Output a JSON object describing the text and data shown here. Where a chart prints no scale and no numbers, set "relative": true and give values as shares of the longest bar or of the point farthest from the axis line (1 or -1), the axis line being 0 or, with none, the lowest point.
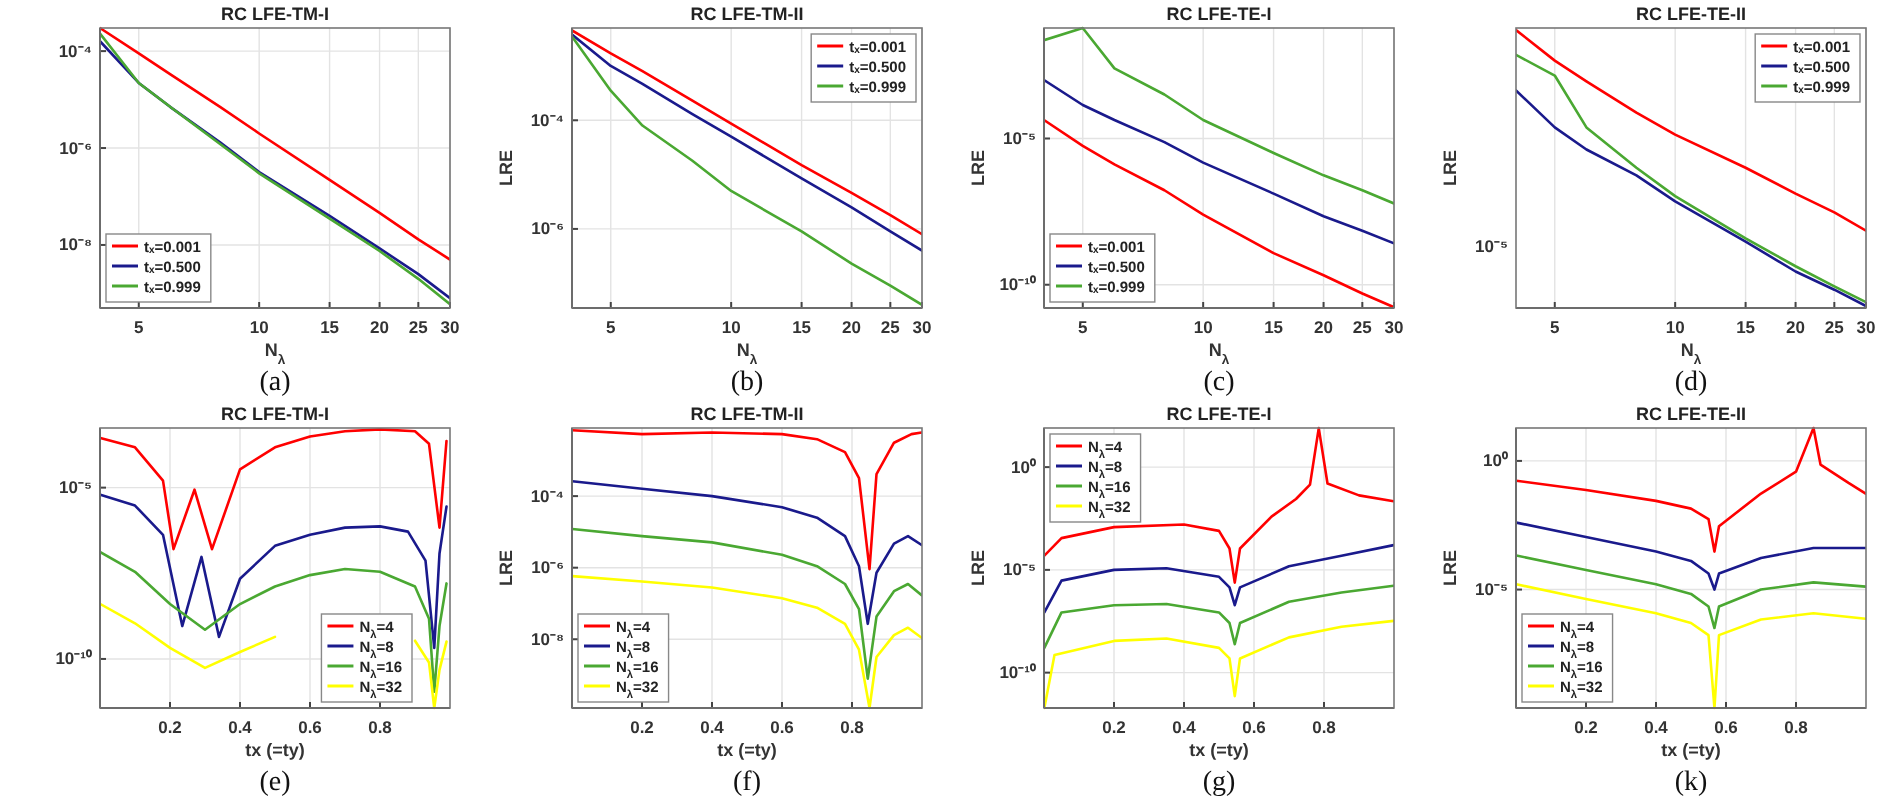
{
  "chart_data": [
    {
      "type": "line",
      "title": "RC LFE-TM-I",
      "xlabel": "N$_{λ}$",
      "annotations": [
        "(a)"
      ],
      "log": "xy",
      "grid": true,
      "legend": "bottom left",
      "xlim": [
        4,
        30
      ],
      "xticks": [
        5,
        10,
        15,
        20,
        25,
        30
      ],
      "ylim": [
        5e-10,
        0.0003
      ],
      "yticks": [
        {
          "value": 1e-08,
          "label": "10⁻⁸"
        },
        {
          "value": 1e-06,
          "label": "10⁻⁶"
        },
        {
          "value": 0.0001,
          "label": "10⁻⁴"
        }
      ],
      "series": [
        {
          "name": "tₓ=0.001",
          "color": "#ff0000",
          "x": [
            4,
            5,
            6,
            8,
            10,
            15,
            20,
            25,
            30
          ],
          "values": [
            0.0003,
            9e-05,
            3.3e-05,
            7e-06,
            2e-06,
            2.2e-07,
            4.6e-08,
            1.3e-08,
            5e-09
          ]
        },
        {
          "name": "tₓ=0.500",
          "color": "#1a1a8c",
          "x": [
            4,
            5,
            6,
            8,
            10,
            15,
            20,
            25,
            30
          ],
          "values": [
            0.00016,
            2.2e-05,
            7e-06,
            1.3e-06,
            3.2e-07,
            4e-08,
            8.5e-09,
            2.5e-09,
            8e-10
          ]
        },
        {
          "name": "tₓ=0.999",
          "color": "#4aa832",
          "x": [
            4,
            5,
            6,
            8,
            10,
            15,
            20,
            25,
            30
          ],
          "values": [
            0.00023,
            2.2e-05,
            7e-06,
            1.2e-06,
            3e-07,
            3.5e-08,
            7.5e-09,
            2e-09,
            6e-10
          ]
        }
      ]
    },
    {
      "type": "line",
      "title": "RC LFE-TM-II",
      "xlabel": "N$_{λ}$",
      "ylabel": "LRE",
      "annotations": [
        "(b)"
      ],
      "log": "xy",
      "grid": true,
      "legend": "top right",
      "xlim": [
        4,
        30
      ],
      "xticks": [
        5,
        10,
        15,
        20,
        25,
        30
      ],
      "ylim": [
        3.5e-08,
        0.005
      ],
      "yticks": [
        {
          "value": 1e-06,
          "label": "10⁻⁶"
        },
        {
          "value": 0.0001,
          "label": "10⁻⁴"
        }
      ],
      "series": [
        {
          "name": "tₓ=0.001",
          "color": "#ff0000",
          "x": [
            4,
            5,
            6,
            8,
            10,
            15,
            20,
            25,
            30
          ],
          "values": [
            0.0045,
            0.0017,
            0.0008,
            0.00023,
            8.7e-05,
            1.5e-05,
            4.6e-06,
            1.8e-06,
            8e-07
          ]
        },
        {
          "name": "tₓ=0.500",
          "color": "#1a1a8c",
          "x": [
            4,
            5,
            6,
            8,
            10,
            15,
            20,
            25,
            30
          ],
          "values": [
            0.0038,
            0.001,
            0.00047,
            0.00013,
            5e-05,
            8.5e-06,
            2.5e-06,
            9e-07,
            4e-07
          ]
        },
        {
          "name": "tₓ=0.999",
          "color": "#4aa832",
          "x": [
            4,
            5,
            6,
            8,
            10,
            15,
            20,
            25,
            30
          ],
          "values": [
            0.0035,
            0.00035,
            8e-05,
            1.8e-05,
            5e-06,
            9e-07,
            2.3e-07,
            9e-08,
            4e-08
          ]
        }
      ]
    },
    {
      "type": "line",
      "title": "RC LFE-TE-I",
      "xlabel": "N$_{λ}$",
      "ylabel": "LRE",
      "annotations": [
        "(c)"
      ],
      "log": "xy",
      "grid": true,
      "legend": "bottom left",
      "xlim": [
        4,
        30
      ],
      "xticks": [
        5,
        10,
        15,
        20,
        25,
        30
      ],
      "ylim": [
        1.6e-11,
        0.06
      ],
      "yticks": [
        {
          "value": 1e-10,
          "label": "10⁻¹⁰"
        },
        {
          "value": 1e-05,
          "label": "10⁻⁵"
        }
      ],
      "series": [
        {
          "name": "tₓ=0.001",
          "color": "#ff0000",
          "x": [
            4,
            5,
            6,
            8,
            10,
            15,
            20,
            25,
            30
          ],
          "values": [
            4.3e-05,
            5.6e-06,
            1.3e-06,
            1.7e-07,
            2.5e-08,
            1.2e-09,
            2.1e-10,
            5e-11,
            1.7e-11
          ]
        },
        {
          "name": "tₓ=0.500",
          "color": "#1a1a8c",
          "x": [
            4,
            5,
            6,
            8,
            10,
            15,
            20,
            25,
            30
          ],
          "values": [
            0.001,
            0.00014,
            4.3e-05,
            7.5e-06,
            1.5e-06,
            1.3e-07,
            2.2e-08,
            7e-09,
            2.6e-09
          ]
        },
        {
          "name": "tₓ=0.999",
          "color": "#4aa832",
          "x": [
            4,
            5,
            6,
            8,
            10,
            15,
            20,
            25,
            30
          ],
          "values": [
            0.023,
            0.06,
            0.0025,
            0.00032,
            4.3e-05,
            3.2e-06,
            5.5e-07,
            1.7e-07,
            6e-08
          ]
        }
      ]
    },
    {
      "type": "line",
      "title": "RC LFE-TE-II",
      "xlabel": "N$_{λ}$",
      "ylabel": "LRE",
      "annotations": [
        "10⁻⁵",
        "(d)"
      ],
      "relative": true,
      "log": "x",
      "grid": true,
      "legend": "top right",
      "xlim": [
        4,
        30
      ],
      "xticks": [
        5,
        10,
        15,
        20,
        25,
        30
      ],
      "series": [
        {
          "name": "tₓ=0.001",
          "color": "#ff0000",
          "x": [
            4,
            5,
            6,
            8,
            10,
            15,
            20,
            25,
            30
          ],
          "values": [
            1.0,
            0.889,
            0.814,
            0.701,
            0.621,
            0.501,
            0.407,
            0.339,
            0.273
          ]
        },
        {
          "name": "tₓ=0.500",
          "color": "#1a1a8c",
          "x": [
            4,
            5,
            6,
            8,
            10,
            15,
            20,
            25,
            30
          ],
          "values": [
            0.781,
            0.647,
            0.567,
            0.473,
            0.379,
            0.233,
            0.125,
            0.059,
            0
          ]
        },
        {
          "name": "tₓ=0.999",
          "color": "#4aa832",
          "x": [
            4,
            5,
            6,
            8,
            10,
            15,
            20,
            25,
            30
          ],
          "values": [
            0.91,
            0.835,
            0.647,
            0.501,
            0.398,
            0.245,
            0.144,
            0.071,
            0.014
          ]
        }
      ]
    },
    {
      "type": "line",
      "title": "RC LFE-TM-I",
      "xlabel": "tx (=ty)",
      "annotations": [
        "(e)"
      ],
      "log": "y",
      "grid": true,
      "legend": "bottom right",
      "xlim": [
        0,
        1
      ],
      "xticks": [
        0.2,
        0.4,
        0.6,
        0.8
      ],
      "ylim": [
        3.7e-12,
        0.00055
      ],
      "yticks": [
        {
          "value": 1e-10,
          "label": "10⁻¹⁰"
        },
        {
          "value": 1e-05,
          "label": "10⁻⁵"
        }
      ],
      "series": [
        {
          "name": "N$_{λ}$=4",
          "color": "#ff0000",
          "x": [
            0.001,
            0.1,
            0.18,
            0.21,
            0.27,
            0.32,
            0.4,
            0.5,
            0.6,
            0.7,
            0.8,
            0.9,
            0.94,
            0.97,
            0.99
          ],
          "values": [
            0.00028,
            0.00015,
            1.6e-05,
            1.6e-07,
            8.7e-06,
            1.6e-07,
            3.4e-05,
            0.00015,
            0.00031,
            0.00044,
            0.0005,
            0.00044,
            0.00019,
            6.8e-07,
            0.00023
          ]
        },
        {
          "name": "N$_{λ}$=8",
          "color": "#1a1a8c",
          "x": [
            0.001,
            0.1,
            0.18,
            0.235,
            0.29,
            0.34,
            0.4,
            0.5,
            0.6,
            0.7,
            0.8,
            0.88,
            0.93,
            0.955,
            0.97,
            0.99
          ],
          "values": [
            6.2e-06,
            3e-06,
            4.2e-07,
            9.1e-10,
            9.5e-08,
            4.4e-10,
            2.2e-08,
            2e-07,
            4.2e-07,
            6.8e-07,
            7.4e-07,
            5.2e-07,
            7.4e-08,
            2.1e-10,
            1.2e-07,
            2.8e-06
          ]
        },
        {
          "name": "N$_{λ}$=16",
          "color": "#4aa832",
          "x": [
            0.001,
            0.1,
            0.2,
            0.3,
            0.4,
            0.5,
            0.6,
            0.7,
            0.8,
            0.9,
            0.94,
            0.955,
            0.97,
            0.99
          ],
          "values": [
            1.3e-07,
            3.5e-08,
            4e-09,
            7.1e-10,
            4e-09,
            1.3e-08,
            2.8e-08,
            4.2e-08,
            3.5e-08,
            1.3e-08,
            1.5e-09,
            1.1e-11,
            9.1e-10,
            1.6e-08
          ]
        },
        {
          "name": "N$_{λ}$=32",
          "color": "#ffff00",
          "x": [
            0.001,
            0.1,
            0.2,
            0.3,
            0.4,
            0.5,
            0.6,
            0.7,
            0.8,
            0.9,
            0.94,
            0.955,
            0.97,
            0.99
          ],
          "values": [
            4e-09,
            1.1e-09,
            2.1e-10,
            5.5e-11,
            1.6e-10,
            4.4e-10,
            null,
            null,
            null,
            3.4e-10,
            7.9e-11,
            3.7e-12,
            4.8e-11,
            3.2e-10
          ]
        }
      ]
    },
    {
      "type": "line",
      "title": "RC LFE-TM-II",
      "xlabel": "tx (=ty)",
      "ylabel": "LRE",
      "annotations": [
        "(f)"
      ],
      "log": "y",
      "grid": true,
      "legend": "bottom left",
      "xlim": [
        0,
        1
      ],
      "xticks": [
        0.2,
        0.4,
        0.6,
        0.8
      ],
      "ylim": [
        1.2e-10,
        0.008
      ],
      "yticks": [
        {
          "value": 1e-08,
          "label": "10⁻⁸"
        },
        {
          "value": 1e-06,
          "label": "10⁻⁶"
        },
        {
          "value": 0.0001,
          "label": "10⁻⁴"
        }
      ],
      "series": [
        {
          "name": "N$_{λ}$=4",
          "color": "#ff0000",
          "x": [
            0.001,
            0.2,
            0.4,
            0.6,
            0.7,
            0.78,
            0.82,
            0.85,
            0.87,
            0.92,
            0.97,
            0.999
          ],
          "values": [
            0.0069,
            0.0054,
            0.006,
            0.0054,
            0.0039,
            0.0017,
            0.00032,
            9.1e-07,
            0.00041,
            0.0031,
            0.0054,
            0.006
          ]
        },
        {
          "name": "N$_{λ}$=8",
          "color": "#1a1a8c",
          "x": [
            0.001,
            0.2,
            0.4,
            0.6,
            0.7,
            0.78,
            0.82,
            0.845,
            0.87,
            0.92,
            0.96,
            0.999
          ],
          "values": [
            0.00026,
            0.00016,
            0.0001,
            4.9e-05,
            2.5e-05,
            7.6e-06,
            1.1e-06,
            2.7e-08,
            7.2e-07,
            4.7e-06,
            7.6e-06,
            4.3e-06
          ]
        },
        {
          "name": "N$_{λ}$=16",
          "color": "#4aa832",
          "x": [
            0.001,
            0.2,
            0.4,
            0.6,
            0.7,
            0.78,
            0.82,
            0.845,
            0.87,
            0.92,
            0.96,
            0.999
          ],
          "values": [
            1.2e-05,
            7.6e-06,
            5.1e-06,
            2.3e-06,
            1.1e-06,
            3.5e-07,
            6.9e-08,
            7.9e-10,
            4.3e-08,
            2.2e-07,
            3.5e-07,
            1.7e-07
          ]
        },
        {
          "name": "N$_{λ}$=32",
          "color": "#ffff00",
          "x": [
            0.001,
            0.2,
            0.4,
            0.6,
            0.7,
            0.78,
            0.82,
            0.85,
            0.87,
            0.92,
            0.96,
            0.999
          ],
          "values": [
            5.8e-07,
            4.1e-07,
            2.8e-07,
            1.4e-07,
            7.6e-08,
            2.7e-08,
            5.1e-09,
            1.2e-10,
            3.2e-09,
            1.3e-08,
            2.1e-08,
            1.1e-08
          ]
        }
      ]
    },
    {
      "type": "line",
      "title": "RC LFE-TE-I",
      "xlabel": "tx (=ty)",
      "ylabel": "LRE",
      "annotations": [
        "(g)"
      ],
      "log": "y",
      "grid": true,
      "legend": "top left",
      "xlim": [
        0,
        1
      ],
      "xticks": [
        0.2,
        0.4,
        0.6,
        0.8
      ],
      "ylim": [
        1.9e-12,
        80
      ],
      "yticks": [
        {
          "value": 1e-10,
          "label": "10⁻¹⁰"
        },
        {
          "value": 1e-05,
          "label": "10⁻⁵"
        },
        {
          "value": 1,
          "label": "10⁰"
        }
      ],
      "series": [
        {
          "name": "N$_{λ}$=4",
          "color": "#ff0000",
          "x": [
            0.001,
            0.05,
            0.2,
            0.4,
            0.5,
            0.53,
            0.545,
            0.56,
            0.65,
            0.72,
            0.76,
            0.785,
            0.81,
            0.9,
            0.999
          ],
          "values": [
            4.9e-05,
            0.00035,
            0.0012,
            0.0016,
            0.00079,
            0.00011,
            2.4e-06,
            0.00011,
            0.0039,
            0.028,
            0.14,
            79,
            0.16,
            0.042,
            0.022
          ]
        },
        {
          "name": "N$_{λ}$=8",
          "color": "#1a1a8c",
          "x": [
            0.001,
            0.05,
            0.2,
            0.35,
            0.5,
            0.53,
            0.545,
            0.56,
            0.7,
            0.85,
            0.999
          ],
          "values": [
            8.5e-08,
            3e-06,
            1e-05,
            1.2e-05,
            4.6e-06,
            1.4e-06,
            1.9e-07,
            1.4e-06,
            1.5e-05,
            4.9e-05,
            0.00016
          ]
        },
        {
          "name": "N$_{λ}$=16",
          "color": "#4aa832",
          "x": [
            0.001,
            0.05,
            0.2,
            0.35,
            0.5,
            0.53,
            0.545,
            0.56,
            0.7,
            0.85,
            0.999
          ],
          "values": [
            1.6e-09,
            8.5e-08,
            1.9e-07,
            2.2e-07,
            8.5e-08,
            2.6e-08,
            2.4e-09,
            2.6e-08,
            2.8e-07,
            7.9e-07,
            1.7e-06
          ]
        },
        {
          "name": "N$_{λ}$=32",
          "color": "#ffff00",
          "x": [
            0.001,
            0.03,
            0.2,
            0.35,
            0.5,
            0.53,
            0.545,
            0.56,
            0.7,
            0.85,
            0.999
          ],
          "values": [
            1.9e-12,
            7.2e-10,
            3.5e-09,
            4.6e-09,
            1.6e-09,
            4.9e-10,
            7.2e-12,
            4.9e-10,
            5.2e-09,
            1.7e-08,
            3.3e-08
          ]
        }
      ]
    },
    {
      "type": "line",
      "title": "RC LFE-TE-II",
      "xlabel": "tx (=ty)",
      "ylabel": "LRE",
      "annotations": [
        "(k)"
      ],
      "log": "y",
      "grid": true,
      "legend": "bottom left",
      "xlim": [
        0,
        1
      ],
      "xticks": [
        0.2,
        0.4,
        0.6,
        0.8
      ],
      "ylim": [
        2.5e-10,
        19
      ],
      "yticks": [
        {
          "value": 1e-05,
          "label": "10⁻⁵"
        },
        {
          "value": 1,
          "label": "10⁰"
        }
      ],
      "series": [
        {
          "name": "N$_{λ}$=4",
          "color": "#ff0000",
          "x": [
            0.001,
            0.2,
            0.4,
            0.5,
            0.55,
            0.567,
            0.58,
            0.7,
            0.8,
            0.85,
            0.87,
            0.95,
            0.999
          ],
          "values": [
            0.17,
            0.074,
            0.028,
            0.014,
            0.0055,
            0.0003,
            0.0029,
            0.054,
            0.38,
            19,
            0.72,
            0.14,
            0.054
          ]
        },
        {
          "name": "N$_{λ}$=8",
          "color": "#1a1a8c",
          "x": [
            0.001,
            0.2,
            0.4,
            0.5,
            0.55,
            0.567,
            0.58,
            0.7,
            0.85,
            0.999
          ],
          "values": [
            0.004,
            0.0011,
            0.0003,
            0.00013,
            4.2e-05,
            1e-05,
            4.2e-05,
            0.00017,
            0.00041,
            0.00041
          ]
        },
        {
          "name": "N$_{λ}$=16",
          "color": "#4aa832",
          "x": [
            0.001,
            0.2,
            0.4,
            0.5,
            0.55,
            0.567,
            0.58,
            0.7,
            0.85,
            0.999
          ],
          "values": [
            0.00021,
            5.8e-05,
            1.6e-05,
            6.8e-06,
            2.2e-06,
            3.2e-07,
            2.2e-06,
            1e-05,
            1.9e-05,
            1.3e-05
          ]
        },
        {
          "name": "N$_{λ}$=32",
          "color": "#ffff00",
          "x": [
            0.001,
            0.2,
            0.4,
            0.5,
            0.55,
            0.567,
            0.58,
            0.7,
            0.85,
            0.999
          ],
          "values": [
            1.6e-05,
            4.3e-06,
            1.2e-06,
            5e-07,
            1.7e-07,
            2.5e-10,
            1.7e-07,
            6.9e-07,
            1.2e-06,
            7.4e-07
          ]
        }
      ]
    }
  ]
}
